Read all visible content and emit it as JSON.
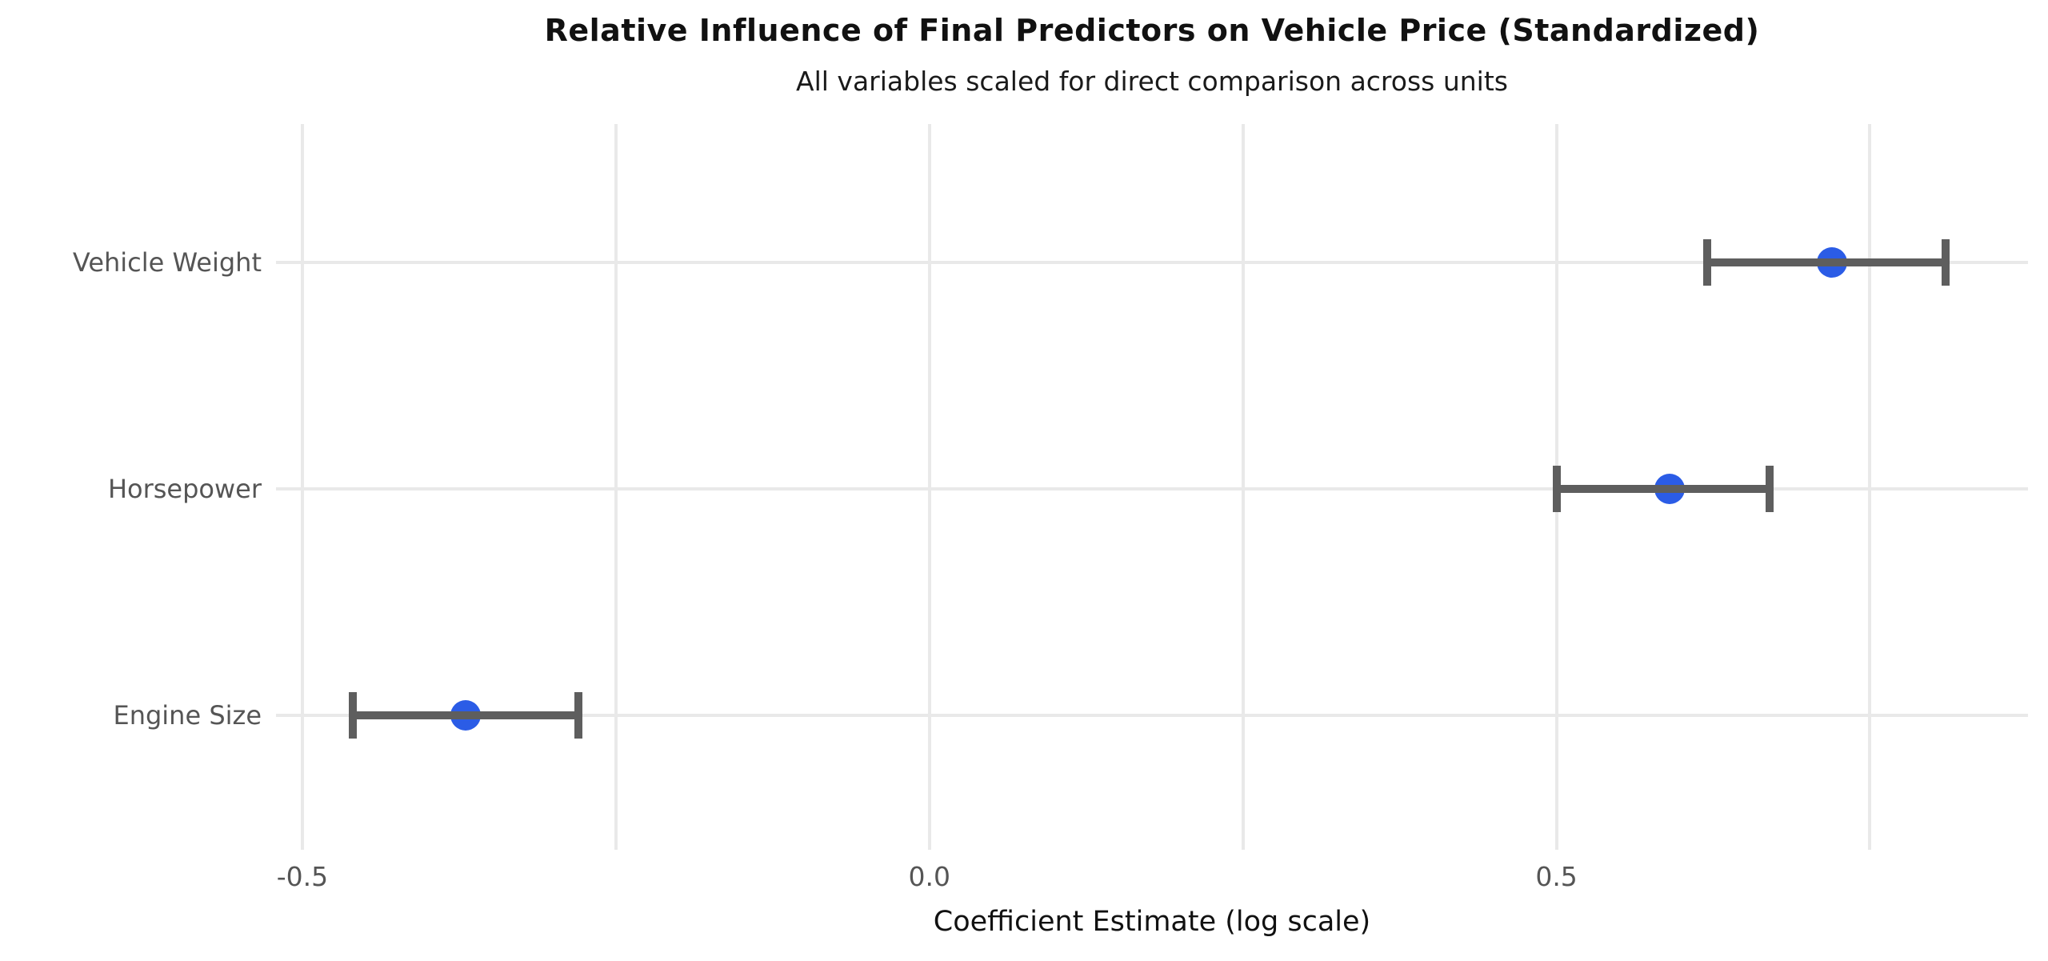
{
  "chart_data": {
    "type": "scatter",
    "subtype": "coefficient-dot-and-whisker",
    "title": "Relative Influence of Final Predictors on Vehicle Price (Standardized)",
    "subtitle": "All variables scaled for direct comparison across units",
    "xlabel": "Coefficient Estimate (log scale)",
    "ylabel": "",
    "categories": [
      "Vehicle Weight",
      "Horsepower",
      "Engine Size"
    ],
    "series": [
      {
        "name": "standardized-coefficients",
        "points": [
          {
            "category": "Vehicle Weight",
            "value": 0.72,
            "ci_low": 0.62,
            "ci_high": 0.81
          },
          {
            "category": "Horsepower",
            "value": 0.59,
            "ci_low": 0.5,
            "ci_high": 0.67
          },
          {
            "category": "Engine Size",
            "value": -0.37,
            "ci_low": -0.46,
            "ci_high": -0.28
          }
        ]
      }
    ],
    "x_ticks": [
      {
        "value": -0.5,
        "label": "-0.5"
      },
      {
        "value": 0.0,
        "label": "0.0"
      },
      {
        "value": 0.5,
        "label": "0.5"
      }
    ],
    "x_minor_gridlines": [
      -0.25,
      0.25,
      0.75
    ],
    "xlim": [
      -0.521,
      0.876
    ],
    "grid": true,
    "legend": false,
    "colors": {
      "point": "#2b5ce6",
      "error_bar": "#5e5e5e",
      "gridline": "#e9e9e9",
      "tick_label": "#555555",
      "category_label": "#555555",
      "title": "#111111",
      "axis_label": "#111111"
    }
  }
}
